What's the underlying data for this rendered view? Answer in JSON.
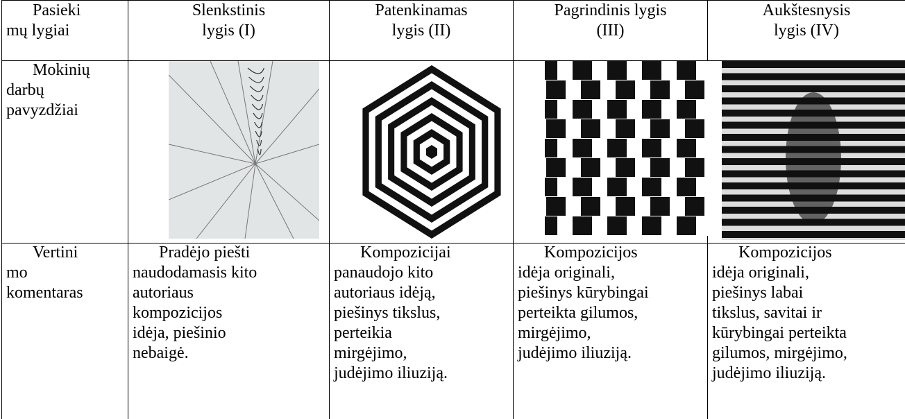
{
  "table": {
    "rows": [
      [
        [
          "Pasieki",
          "mų lygiai"
        ],
        [
          "Slenkstinis",
          "lygis (I)"
        ],
        [
          "Patenkinamas",
          "lygis (II)"
        ],
        [
          "Pagrindinis lygis",
          "(III)"
        ],
        [
          "Aukštesnysis",
          "lygis (IV)"
        ]
      ],
      [
        [
          "Mokinių",
          "darbų",
          "pavyzdžiai"
        ]
      ],
      [
        [
          "Vertini",
          "mo",
          "komentaras"
        ],
        [
          "Pradėjo piešti",
          "naudodamasis kito",
          "autoriaus",
          "kompozicijos",
          "idėja, piešinio",
          "nebaigė."
        ],
        [
          "Kompozicijai",
          "panaudojo kito",
          "autoriaus idėją,",
          "piešinys tikslus,",
          "perteikia",
          "mirgėjimo,",
          "judėjimo iliuziją."
        ],
        [
          "Kompozicijos",
          "idėja originali,",
          "piešinys kūrybingai",
          "perteikta gilumos,",
          "mirgėjimo,",
          "judėjimo iliuziją."
        ],
        [
          "Kompozicijos",
          "idėja originali,",
          "piešinys labai",
          "tikslus, savitai ir",
          "kūrybingai perteikta",
          "gilumos, mirgėjimo,",
          "judėjimo iliuziją."
        ]
      ]
    ]
  }
}
